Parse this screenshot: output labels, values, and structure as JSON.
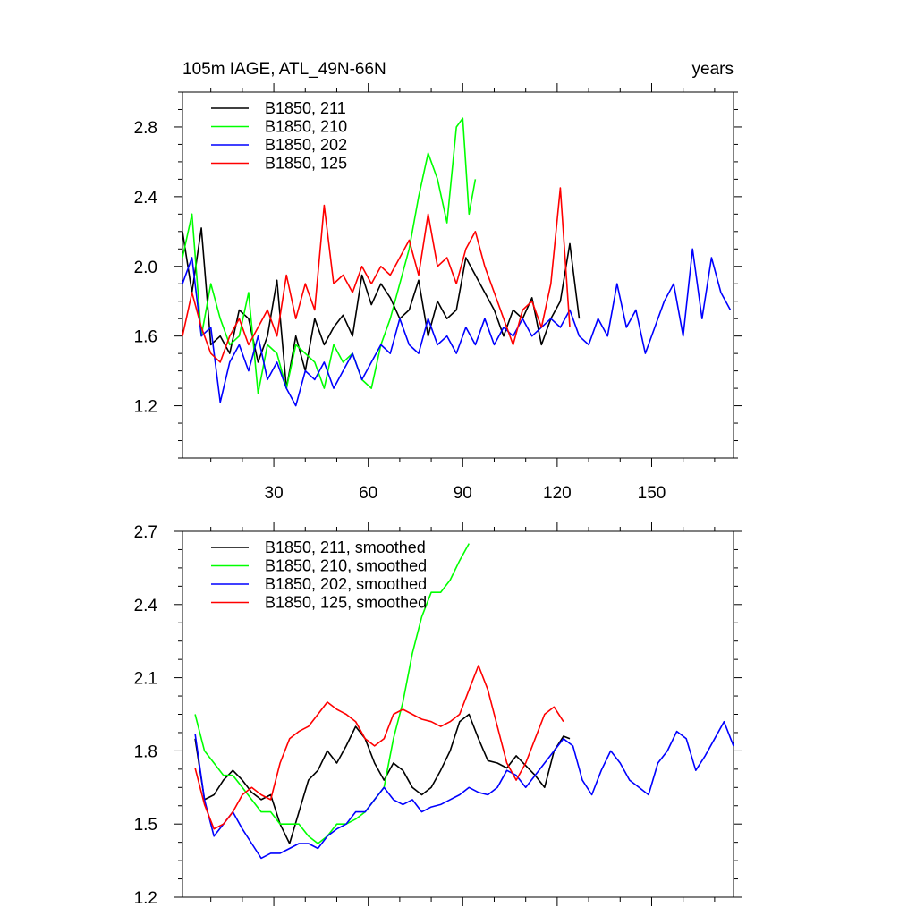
{
  "figure": {
    "title_left": "105m IAGE, ATL_49N-66N",
    "title_right": "years"
  },
  "chart_data": [
    {
      "type": "line",
      "panel": "top",
      "xlim": [
        1,
        176
      ],
      "ylim": [
        0.9,
        3.0
      ],
      "x_ticks": [
        30,
        60,
        90,
        120,
        150
      ],
      "x_tick_labels": [
        "30",
        "60",
        "90",
        "120",
        "150"
      ],
      "y_ticks": [
        1.2,
        1.6,
        2.0,
        2.4,
        2.8
      ],
      "y_tick_labels": [
        "1.2",
        "1.6",
        "2.0",
        "2.4",
        "2.8"
      ],
      "legend_position": "top-left",
      "series": [
        {
          "name": "B1850, 211",
          "color": "#000000",
          "x": [
            1,
            4,
            7,
            10,
            13,
            16,
            19,
            22,
            25,
            28,
            31,
            34,
            37,
            40,
            43,
            46,
            49,
            52,
            55,
            58,
            61,
            64,
            67,
            70,
            73,
            76,
            79,
            82,
            85,
            88,
            91,
            94,
            97,
            100,
            103,
            106,
            109,
            112,
            115,
            118,
            121,
            124,
            127
          ],
          "y": [
            2.2,
            1.85,
            2.22,
            1.55,
            1.6,
            1.5,
            1.75,
            1.7,
            1.45,
            1.6,
            1.92,
            1.3,
            1.6,
            1.4,
            1.7,
            1.55,
            1.65,
            1.72,
            1.6,
            1.95,
            1.78,
            1.9,
            1.82,
            1.7,
            1.75,
            1.92,
            1.6,
            1.8,
            1.7,
            1.75,
            2.05,
            1.95,
            1.85,
            1.75,
            1.6,
            1.75,
            1.7,
            1.82,
            1.55,
            1.7,
            1.8,
            2.13,
            1.7
          ]
        },
        {
          "name": "B1850, 210",
          "color": "#00ff00",
          "x": [
            1,
            4,
            7,
            10,
            13,
            16,
            19,
            22,
            25,
            28,
            31,
            34,
            37,
            40,
            43,
            46,
            49,
            52,
            55,
            58,
            61,
            64,
            67,
            70,
            73,
            76,
            79,
            82,
            85,
            88,
            90,
            92,
            94
          ],
          "y": [
            2.05,
            2.3,
            1.6,
            1.9,
            1.7,
            1.55,
            1.6,
            1.85,
            1.27,
            1.55,
            1.5,
            1.3,
            1.55,
            1.5,
            1.45,
            1.3,
            1.55,
            1.45,
            1.5,
            1.35,
            1.3,
            1.55,
            1.7,
            1.9,
            2.1,
            2.4,
            2.65,
            2.5,
            2.25,
            2.8,
            2.85,
            2.3,
            2.5
          ]
        },
        {
          "name": "B1850, 202",
          "color": "#0000ff",
          "x": [
            1,
            4,
            7,
            10,
            13,
            16,
            19,
            22,
            25,
            28,
            31,
            34,
            37,
            40,
            43,
            46,
            49,
            52,
            55,
            58,
            61,
            64,
            67,
            70,
            73,
            76,
            79,
            82,
            85,
            88,
            91,
            94,
            97,
            100,
            103,
            106,
            109,
            112,
            115,
            118,
            121,
            124,
            127,
            130,
            133,
            136,
            139,
            142,
            145,
            148,
            151,
            154,
            157,
            160,
            163,
            166,
            169,
            172,
            175
          ],
          "y": [
            1.9,
            2.05,
            1.6,
            1.65,
            1.22,
            1.45,
            1.55,
            1.4,
            1.6,
            1.35,
            1.45,
            1.3,
            1.2,
            1.4,
            1.35,
            1.45,
            1.3,
            1.4,
            1.5,
            1.35,
            1.45,
            1.55,
            1.5,
            1.7,
            1.55,
            1.5,
            1.7,
            1.55,
            1.6,
            1.5,
            1.65,
            1.55,
            1.7,
            1.55,
            1.65,
            1.6,
            1.7,
            1.6,
            1.65,
            1.7,
            1.65,
            1.75,
            1.6,
            1.55,
            1.7,
            1.6,
            1.9,
            1.65,
            1.75,
            1.5,
            1.65,
            1.8,
            1.9,
            1.6,
            2.1,
            1.7,
            2.05,
            1.85,
            1.75
          ]
        },
        {
          "name": "B1850, 125",
          "color": "#ff0000",
          "x": [
            1,
            4,
            7,
            10,
            13,
            16,
            19,
            22,
            25,
            28,
            31,
            34,
            37,
            40,
            43,
            46,
            49,
            52,
            55,
            58,
            61,
            64,
            67,
            70,
            73,
            76,
            79,
            82,
            85,
            88,
            91,
            94,
            97,
            100,
            103,
            106,
            109,
            112,
            115,
            118,
            121,
            124
          ],
          "y": [
            1.6,
            1.85,
            1.65,
            1.5,
            1.45,
            1.6,
            1.7,
            1.55,
            1.65,
            1.75,
            1.6,
            1.95,
            1.7,
            1.9,
            1.75,
            2.35,
            1.9,
            1.95,
            1.85,
            2.0,
            1.9,
            2.0,
            1.95,
            2.05,
            2.15,
            1.95,
            2.3,
            2.0,
            2.05,
            1.9,
            2.1,
            2.2,
            2.0,
            1.85,
            1.7,
            1.55,
            1.75,
            1.8,
            1.65,
            1.9,
            2.45,
            1.65
          ]
        }
      ]
    },
    {
      "type": "line",
      "panel": "bottom",
      "xlim": [
        1,
        176
      ],
      "ylim": [
        1.2,
        2.7
      ],
      "x_ticks": [
        30,
        60,
        90,
        120,
        150
      ],
      "x_tick_labels": [],
      "y_ticks": [
        1.2,
        1.5,
        1.8,
        2.1,
        2.4,
        2.7
      ],
      "y_tick_labels": [
        "1.2",
        "1.5",
        "1.8",
        "2.1",
        "2.4",
        "2.7"
      ],
      "legend_position": "top-left",
      "series": [
        {
          "name": "B1850, 211, smoothed",
          "color": "#000000",
          "x": [
            5,
            8,
            11,
            14,
            17,
            20,
            23,
            26,
            29,
            32,
            35,
            38,
            41,
            44,
            47,
            50,
            53,
            56,
            59,
            62,
            65,
            68,
            71,
            74,
            77,
            80,
            83,
            86,
            89,
            92,
            95,
            98,
            101,
            104,
            107,
            110,
            113,
            116,
            119,
            122,
            124
          ],
          "y": [
            1.85,
            1.6,
            1.62,
            1.68,
            1.72,
            1.68,
            1.63,
            1.6,
            1.62,
            1.5,
            1.42,
            1.55,
            1.68,
            1.72,
            1.8,
            1.75,
            1.82,
            1.9,
            1.85,
            1.75,
            1.68,
            1.75,
            1.72,
            1.65,
            1.62,
            1.65,
            1.72,
            1.8,
            1.92,
            1.95,
            1.85,
            1.76,
            1.75,
            1.73,
            1.78,
            1.74,
            1.7,
            1.65,
            1.8,
            1.86,
            1.85
          ]
        },
        {
          "name": "B1850, 210, smoothed",
          "color": "#00ff00",
          "x": [
            5,
            8,
            11,
            14,
            17,
            20,
            23,
            26,
            29,
            32,
            35,
            38,
            41,
            44,
            47,
            50,
            53,
            56,
            59,
            62,
            65,
            68,
            71,
            74,
            77,
            80,
            83,
            86,
            89,
            92
          ],
          "y": [
            1.95,
            1.8,
            1.75,
            1.7,
            1.7,
            1.65,
            1.6,
            1.55,
            1.55,
            1.5,
            1.5,
            1.5,
            1.45,
            1.42,
            1.45,
            1.5,
            1.5,
            1.52,
            1.55,
            1.6,
            1.65,
            1.85,
            2.0,
            2.2,
            2.35,
            2.45,
            2.45,
            2.5,
            2.58,
            2.65
          ]
        },
        {
          "name": "B1850, 202, smoothed",
          "color": "#0000ff",
          "x": [
            5,
            8,
            11,
            14,
            17,
            20,
            23,
            26,
            29,
            32,
            35,
            38,
            41,
            44,
            47,
            50,
            53,
            56,
            59,
            62,
            65,
            68,
            71,
            74,
            77,
            80,
            83,
            86,
            89,
            92,
            95,
            98,
            101,
            104,
            107,
            110,
            113,
            116,
            119,
            122,
            125,
            128,
            131,
            134,
            137,
            140,
            143,
            146,
            149,
            152,
            155,
            158,
            161,
            164,
            167,
            170,
            173,
            176
          ],
          "y": [
            1.87,
            1.6,
            1.45,
            1.5,
            1.55,
            1.48,
            1.42,
            1.36,
            1.38,
            1.38,
            1.4,
            1.42,
            1.42,
            1.4,
            1.45,
            1.48,
            1.5,
            1.55,
            1.55,
            1.6,
            1.65,
            1.6,
            1.58,
            1.6,
            1.55,
            1.57,
            1.58,
            1.6,
            1.62,
            1.65,
            1.63,
            1.62,
            1.65,
            1.72,
            1.7,
            1.65,
            1.7,
            1.75,
            1.8,
            1.85,
            1.82,
            1.68,
            1.62,
            1.72,
            1.8,
            1.75,
            1.68,
            1.65,
            1.62,
            1.75,
            1.8,
            1.88,
            1.85,
            1.72,
            1.78,
            1.85,
            1.92,
            1.82
          ]
        },
        {
          "name": "B1850, 125, smoothed",
          "color": "#ff0000",
          "x": [
            5,
            8,
            11,
            14,
            17,
            20,
            23,
            26,
            29,
            32,
            35,
            38,
            41,
            44,
            47,
            50,
            53,
            56,
            59,
            62,
            65,
            68,
            71,
            74,
            77,
            80,
            83,
            86,
            89,
            92,
            95,
            98,
            101,
            104,
            107,
            110,
            113,
            116,
            119,
            122
          ],
          "y": [
            1.73,
            1.58,
            1.48,
            1.5,
            1.55,
            1.62,
            1.65,
            1.62,
            1.6,
            1.75,
            1.85,
            1.88,
            1.9,
            1.95,
            2.0,
            1.97,
            1.95,
            1.92,
            1.85,
            1.82,
            1.85,
            1.95,
            1.97,
            1.95,
            1.93,
            1.92,
            1.9,
            1.92,
            1.95,
            2.05,
            2.15,
            2.05,
            1.9,
            1.75,
            1.68,
            1.75,
            1.85,
            1.95,
            1.98,
            1.92
          ]
        }
      ]
    }
  ]
}
